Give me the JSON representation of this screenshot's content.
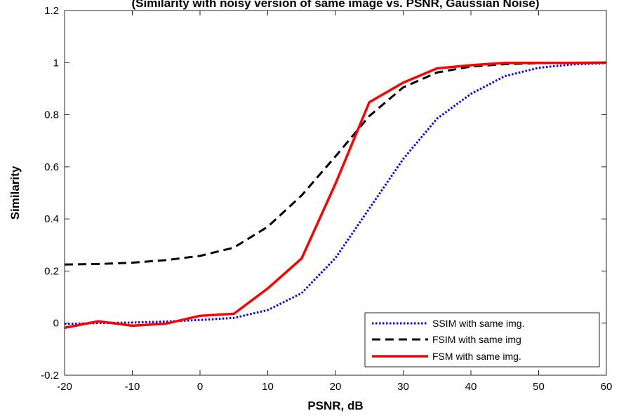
{
  "chart_data": {
    "type": "line",
    "title": "(Similarity with noisy version of same image vs. PSNR, Gaussian Noise)",
    "xlabel": "PSNR, dB",
    "ylabel": "Similarity",
    "xlim": [
      -20,
      60
    ],
    "ylim": [
      -0.2,
      1.2
    ],
    "xticks": [
      -20,
      -10,
      0,
      10,
      20,
      30,
      40,
      50,
      60
    ],
    "xtick_labels": [
      "-20",
      "-10",
      "0",
      "10",
      "20",
      "30",
      "40",
      "50",
      "60"
    ],
    "yticks": [
      -0.2,
      0,
      0.2,
      0.4,
      0.6,
      0.8,
      1,
      1.2
    ],
    "ytick_labels": [
      "-0.2",
      "0",
      "0.2",
      "0.4",
      "0.6",
      "0.8",
      "1",
      "1.2"
    ],
    "grid": false,
    "legend_position": "bottom-right",
    "series": [
      {
        "name": "SSIM with same img.",
        "color": "#0000ff",
        "style": "dotted",
        "x": [
          -20,
          -15,
          -10,
          -5,
          0,
          5,
          10,
          15,
          20,
          25,
          30,
          35,
          40,
          45,
          50,
          55,
          60
        ],
        "y": [
          -0.003,
          0.0,
          0.002,
          0.006,
          0.012,
          0.02,
          0.05,
          0.115,
          0.25,
          0.44,
          0.63,
          0.785,
          0.88,
          0.948,
          0.98,
          0.993,
          0.998
        ]
      },
      {
        "name": "FSIM with same img",
        "color": "#000000",
        "style": "dashed",
        "x": [
          -20,
          -15,
          -10,
          -5,
          0,
          5,
          10,
          15,
          20,
          25,
          30,
          35,
          40,
          45,
          50,
          55,
          60
        ],
        "y": [
          0.225,
          0.227,
          0.232,
          0.242,
          0.258,
          0.29,
          0.37,
          0.49,
          0.64,
          0.795,
          0.905,
          0.962,
          0.985,
          0.994,
          0.998,
          0.999,
          1.0
        ]
      },
      {
        "name": "FSM with same img.",
        "color": "#ff0000",
        "style": "solid",
        "x": [
          -20,
          -15,
          -10,
          -5,
          0,
          5,
          10,
          15,
          20,
          25,
          30,
          35,
          40,
          45,
          50,
          55,
          60
        ],
        "y": [
          -0.018,
          0.007,
          -0.01,
          -0.002,
          0.028,
          0.036,
          0.133,
          0.248,
          0.535,
          0.848,
          0.923,
          0.978,
          0.99,
          0.999,
          0.999,
          0.999,
          1.0
        ]
      }
    ]
  }
}
